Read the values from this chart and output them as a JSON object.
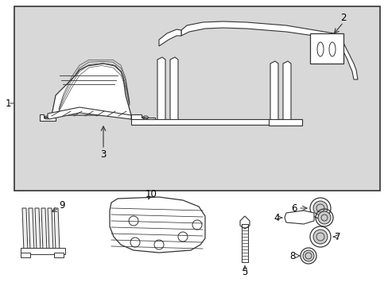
{
  "background_color": "#ffffff",
  "box_bg": "#d8d8d8",
  "line_color": "#333333",
  "label_color": "#000000",
  "figsize": [
    4.89,
    3.6
  ],
  "dpi": 100
}
